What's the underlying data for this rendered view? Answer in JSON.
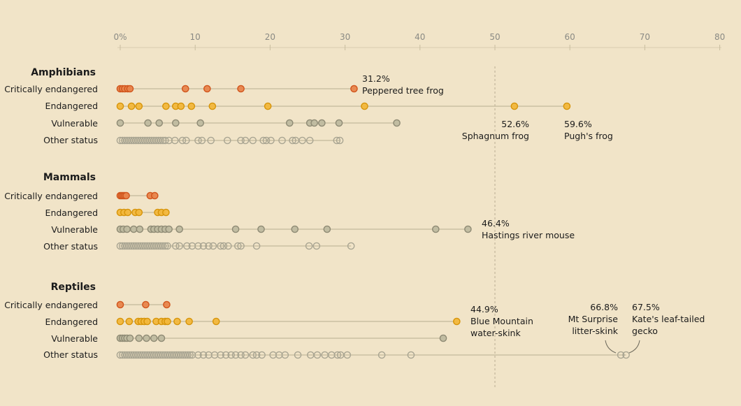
{
  "chart_data": {
    "type": "scatter",
    "xlabel": "",
    "ylabel": "",
    "xlim": [
      0,
      80
    ],
    "x_ticks": [
      0,
      10,
      20,
      30,
      40,
      50,
      60,
      70,
      80
    ],
    "x_tick_labels": [
      "0%",
      "10",
      "20",
      "30",
      "40",
      "50",
      "60",
      "70",
      "80"
    ],
    "reference_line": 50,
    "status_colors": {
      "Critically endangered": {
        "fill": "#e8854c",
        "stroke": "#d0541c"
      },
      "Endangered": {
        "fill": "#f2b73c",
        "stroke": "#d6940a"
      },
      "Vulnerable": {
        "fill": "#bfbaa0",
        "stroke": "#8e8a74"
      },
      "Other status": {
        "fill": "none",
        "stroke": "#a9a592"
      }
    },
    "groups": [
      {
        "name": "Amphibians",
        "rows": [
          {
            "status": "Critically endangered",
            "values": [
              0,
              0.3,
              0.6,
              1.0,
              1.3,
              8.7,
              11.6,
              16.1,
              31.2
            ]
          },
          {
            "status": "Endangered",
            "values": [
              0,
              1.5,
              2.5,
              6.1,
              7.4,
              8.1,
              9.5,
              12.3,
              19.7,
              32.6,
              52.6,
              59.6
            ]
          },
          {
            "status": "Vulnerable",
            "values": [
              0,
              3.7,
              5.2,
              7.4,
              10.7,
              22.6,
              25.3,
              25.9,
              26.9,
              29.2,
              36.9
            ]
          },
          {
            "status": "Other status",
            "values": [
              0,
              0.3,
              0.6,
              0.9,
              1.2,
              1.5,
              1.8,
              2.1,
              2.4,
              2.7,
              3.0,
              3.3,
              3.6,
              3.9,
              4.2,
              4.5,
              4.8,
              5.1,
              5.4,
              5.7,
              6.0,
              6.5,
              7.3,
              8.3,
              8.8,
              10.4,
              10.9,
              12.1,
              14.3,
              16.1,
              16.7,
              17.7,
              19.1,
              19.5,
              20.1,
              21.6,
              23.0,
              23.4,
              24.3,
              25.3,
              28.9,
              29.3
            ]
          }
        ],
        "annotations": [
          {
            "value": 31.2,
            "row": "Critically endangered",
            "lines": [
              "31.2%",
              "Peppered tree frog"
            ]
          },
          {
            "value": 52.6,
            "row": "Endangered",
            "lines": [
              "52.6%",
              "Sphagnum frog"
            ]
          },
          {
            "value": 59.6,
            "row": "Endangered",
            "lines": [
              "59.6%",
              "Pugh's frog"
            ]
          }
        ]
      },
      {
        "name": "Mammals",
        "rows": [
          {
            "status": "Critically endangered",
            "values": [
              0,
              0.2,
              0.4,
              0.6,
              0.8,
              4.0,
              4.6
            ]
          },
          {
            "status": "Endangered",
            "values": [
              0,
              0.5,
              1.0,
              2.0,
              2.5,
              5.0,
              5.5,
              6.1
            ]
          },
          {
            "status": "Vulnerable",
            "values": [
              0,
              0.4,
              0.9,
              1.8,
              2.6,
              4.1,
              4.5,
              5.0,
              5.5,
              6.0,
              6.5,
              7.9,
              15.4,
              18.8,
              23.3,
              27.6,
              42.1,
              46.4
            ]
          },
          {
            "status": "Other status",
            "values": [
              0,
              0.3,
              0.6,
              0.9,
              1.2,
              1.5,
              1.8,
              2.1,
              2.4,
              2.7,
              3.0,
              3.3,
              3.6,
              3.9,
              4.2,
              4.5,
              4.8,
              5.1,
              5.4,
              5.7,
              6.0,
              6.3,
              7.4,
              7.9,
              8.9,
              9.6,
              10.4,
              11.1,
              11.8,
              12.4,
              13.4,
              13.8,
              14.4,
              15.7,
              16.1,
              18.2,
              25.2,
              26.2,
              30.8
            ]
          }
        ],
        "annotations": [
          {
            "value": 46.4,
            "row": "Vulnerable",
            "lines": [
              "46.4%",
              "Hastings river mouse"
            ]
          }
        ]
      },
      {
        "name": "Reptiles",
        "rows": [
          {
            "status": "Critically endangered",
            "values": [
              0,
              3.4,
              6.2
            ]
          },
          {
            "status": "Endangered",
            "values": [
              0,
              1.2,
              2.4,
              2.8,
              3.2,
              3.6,
              4.8,
              5.5,
              6.0,
              6.3,
              7.6,
              9.2,
              12.8,
              44.9
            ]
          },
          {
            "status": "Vulnerable",
            "values": [
              0,
              0.3,
              0.6,
              0.9,
              1.3,
              2.5,
              3.5,
              4.5,
              5.5,
              43.1
            ]
          },
          {
            "status": "Other status",
            "values": [
              0,
              0.3,
              0.6,
              0.9,
              1.2,
              1.5,
              1.8,
              2.1,
              2.4,
              2.7,
              3.0,
              3.3,
              3.6,
              3.9,
              4.2,
              4.5,
              4.8,
              5.1,
              5.4,
              5.7,
              6.0,
              6.3,
              6.6,
              6.9,
              7.2,
              7.5,
              7.8,
              8.1,
              8.4,
              8.7,
              9.0,
              9.3,
              9.6,
              10.4,
              11.1,
              11.8,
              12.6,
              13.4,
              14.1,
              14.8,
              15.4,
              16.1,
              16.7,
              17.7,
              18.2,
              18.9,
              20.4,
              21.2,
              22.0,
              23.7,
              25.4,
              26.3,
              27.3,
              28.2,
              29.0,
              29.4,
              30.3,
              34.9,
              38.8,
              66.8,
              67.5
            ]
          }
        ],
        "annotations": [
          {
            "value": 44.9,
            "row": "Endangered",
            "lines": [
              "44.9%",
              "Blue Mountain",
              "water-skink"
            ]
          },
          {
            "value": 66.8,
            "row": "Other status",
            "lines": [
              "66.8%",
              "Mt Surprise",
              "litter-skink"
            ]
          },
          {
            "value": 67.5,
            "row": "Other status",
            "lines": [
              "67.5%",
              "Kate's leaf-tailed",
              "gecko"
            ]
          }
        ]
      }
    ]
  }
}
